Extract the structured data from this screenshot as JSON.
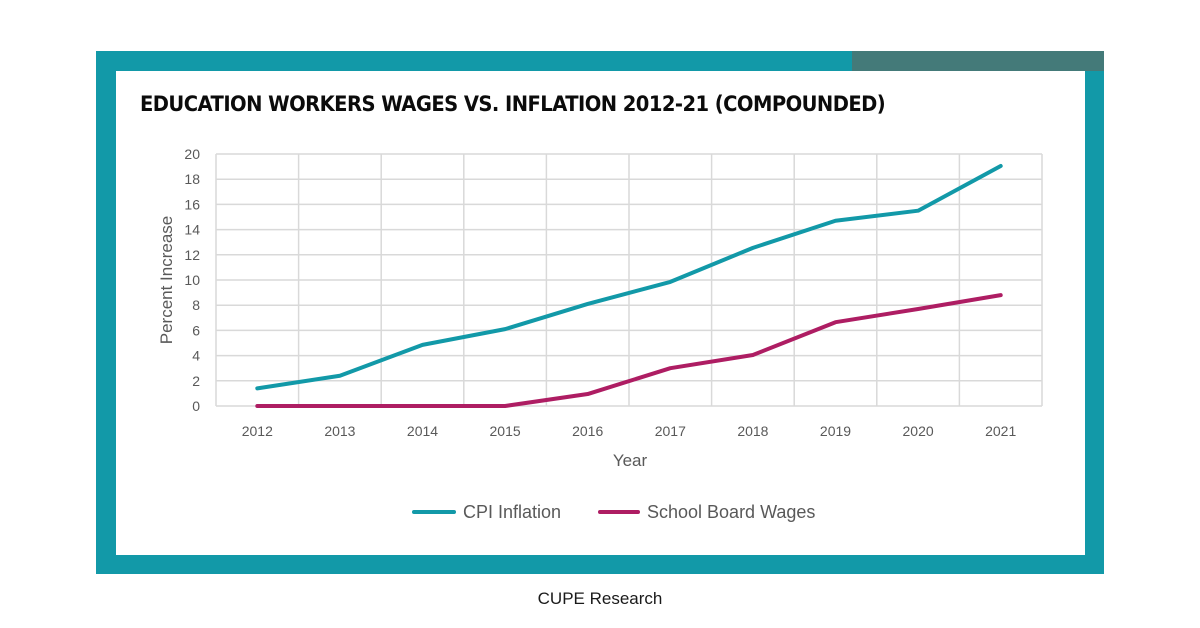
{
  "title": "EDUCATION WORKERS WAGES VS. INFLATION 2012-21 (COMPOUNDED)",
  "caption": "CUPE Research",
  "colors": {
    "frame": "#1299a8",
    "frame_accent": "#447a79",
    "cpi": "#1299a8",
    "wages": "#ae1d63",
    "grid": "#d9d9d9",
    "tick_text": "#595959"
  },
  "legend": {
    "cpi_label": "CPI Inflation",
    "wages_label": "School Board Wages"
  },
  "chart_data": {
    "type": "line",
    "title": "EDUCATION WORKERS WAGES VS. INFLATION 2012-21 (COMPOUNDED)",
    "xlabel": "Year",
    "ylabel": "Percent Increase",
    "categories": [
      "2012",
      "2013",
      "2014",
      "2015",
      "2016",
      "2017",
      "2018",
      "2019",
      "2020",
      "2021"
    ],
    "series": [
      {
        "name": "CPI Inflation",
        "color": "#1299a8",
        "values": [
          1.4,
          2.4,
          4.85,
          6.1,
          8.1,
          9.85,
          12.55,
          14.7,
          15.5,
          19.05
        ]
      },
      {
        "name": "School Board Wages",
        "color": "#ae1d63",
        "values": [
          0,
          0,
          0,
          0,
          0.95,
          3.0,
          4.05,
          6.65,
          7.7,
          8.8
        ]
      }
    ],
    "yticks": [
      0,
      2,
      4,
      6,
      8,
      10,
      12,
      14,
      16,
      18,
      20
    ],
    "ylim": [
      0,
      20
    ],
    "grid": true,
    "legend_position": "bottom"
  }
}
